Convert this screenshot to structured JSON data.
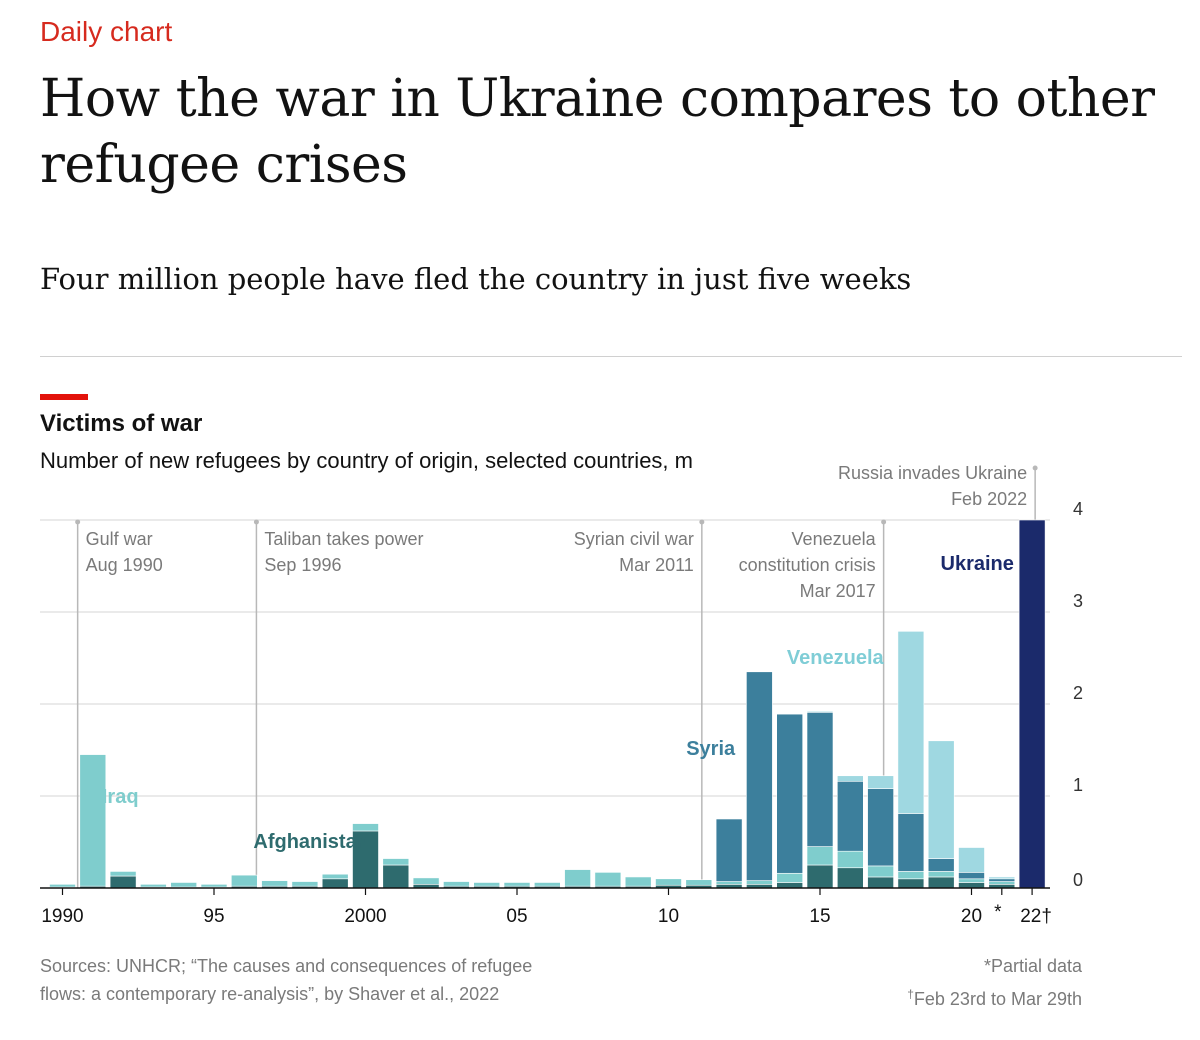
{
  "header": {
    "kicker": "Daily chart",
    "title": "How the war in Ukraine compares to other refugee crises",
    "subtitle": "Four million people have fled the country in just five weeks"
  },
  "chart_data": {
    "type": "bar",
    "stacked": true,
    "title": "Victims of war",
    "subtitle": "Number of new refugees by country of origin, selected countries, m",
    "ylim": [
      0,
      4
    ],
    "yticks": [
      0,
      1,
      2,
      3,
      4
    ],
    "xticks": [
      {
        "year": 1990,
        "label": "1990"
      },
      {
        "year": 1995,
        "label": "95"
      },
      {
        "year": 2000,
        "label": "2000"
      },
      {
        "year": 2005,
        "label": "05"
      },
      {
        "year": 2010,
        "label": "10"
      },
      {
        "year": 2015,
        "label": "15"
      },
      {
        "year": 2020,
        "label": "20"
      },
      {
        "year": 2021,
        "label": "*"
      },
      {
        "year": 2022,
        "label": "22†"
      }
    ],
    "years": [
      1990,
      1991,
      1992,
      1993,
      1994,
      1995,
      1996,
      1997,
      1998,
      1999,
      2000,
      2001,
      2002,
      2003,
      2004,
      2005,
      2006,
      2007,
      2008,
      2009,
      2010,
      2011,
      2012,
      2013,
      2014,
      2015,
      2016,
      2017,
      2018,
      2019,
      2020,
      2021,
      2022
    ],
    "series": [
      {
        "name": "Afghanistan",
        "color": "#2e6b6e",
        "values": [
          0.01,
          0.02,
          0.13,
          0.01,
          0.01,
          0.01,
          0.02,
          0.02,
          0.02,
          0.1,
          0.62,
          0.25,
          0.04,
          0.02,
          0.02,
          0.02,
          0.02,
          0.02,
          0.02,
          0.02,
          0.03,
          0.03,
          0.04,
          0.04,
          0.06,
          0.25,
          0.22,
          0.12,
          0.1,
          0.12,
          0.06,
          0.04,
          0
        ]
      },
      {
        "name": "Iraq",
        "color": "#7fcdcd",
        "values": [
          0.03,
          1.43,
          0.05,
          0.03,
          0.05,
          0.03,
          0.12,
          0.06,
          0.05,
          0.05,
          0.08,
          0.07,
          0.07,
          0.05,
          0.04,
          0.04,
          0.04,
          0.18,
          0.15,
          0.1,
          0.07,
          0.06,
          0.03,
          0.04,
          0.1,
          0.2,
          0.18,
          0.12,
          0.08,
          0.06,
          0.04,
          0.03,
          0
        ]
      },
      {
        "name": "Syria",
        "color": "#3c7f9c",
        "values": [
          0,
          0,
          0,
          0,
          0,
          0,
          0,
          0,
          0,
          0,
          0,
          0,
          0,
          0,
          0,
          0,
          0,
          0,
          0,
          0,
          0,
          0,
          0.68,
          2.27,
          1.73,
          1.46,
          0.76,
          0.84,
          0.63,
          0.14,
          0.07,
          0.03,
          0
        ]
      },
      {
        "name": "Venezuela",
        "color": "#9fd8e1",
        "values": [
          0,
          0,
          0,
          0,
          0,
          0,
          0,
          0,
          0,
          0,
          0,
          0,
          0,
          0,
          0,
          0,
          0,
          0,
          0,
          0,
          0,
          0,
          0,
          0,
          0,
          0.01,
          0.06,
          0.14,
          1.98,
          1.28,
          0.27,
          0.02,
          0
        ]
      },
      {
        "name": "Ukraine",
        "color": "#1b2a6b",
        "values": [
          0,
          0,
          0,
          0,
          0,
          0,
          0,
          0,
          0,
          0,
          0,
          0,
          0,
          0,
          0,
          0,
          0,
          0,
          0,
          0,
          0,
          0,
          0,
          0,
          0,
          0,
          0,
          0,
          0,
          0,
          0,
          0,
          4.0
        ]
      }
    ],
    "series_labels": [
      {
        "text": "Iraq",
        "series": "Iraq"
      },
      {
        "text": "Afghanistan",
        "series": "Afghanistan"
      },
      {
        "text": "Syria",
        "series": "Syria"
      },
      {
        "text": "Venezuela",
        "series": "Venezuela"
      },
      {
        "text": "Ukraine",
        "series": "Ukraine"
      }
    ],
    "annotations": [
      {
        "year": 1990.5,
        "lines": [
          "Gulf war",
          "Aug 1990"
        ],
        "align": "left"
      },
      {
        "year": 1996.4,
        "lines": [
          "Taliban takes power",
          "Sep 1996"
        ],
        "align": "left"
      },
      {
        "year": 2011.1,
        "lines": [
          "Syrian civil war",
          "Mar 2011"
        ],
        "align": "right"
      },
      {
        "year": 2017.1,
        "lines": [
          "Venezuela",
          "constitution crisis",
          "Mar 2017"
        ],
        "align": "right"
      },
      {
        "year": 2022.1,
        "lines": [
          "Russia invades Ukraine",
          "Feb 2022"
        ],
        "align": "right"
      }
    ]
  },
  "footer": {
    "sources": "Sources: UNHCR; “The causes and consequences of refugee flows: a contemporary re-analysis”, by Shaver et al., 2022",
    "note_partial": "*Partial data",
    "note_dagger_mark": "†",
    "note_dagger_text": "Feb 23rd to Mar 29th"
  }
}
